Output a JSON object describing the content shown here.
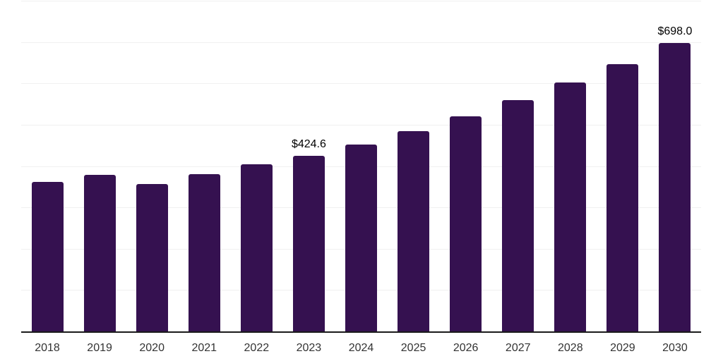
{
  "chart_data": {
    "type": "bar",
    "title": "",
    "xlabel": "",
    "ylabel": "",
    "categories": [
      "2018",
      "2019",
      "2020",
      "2021",
      "2022",
      "2023",
      "2024",
      "2025",
      "2026",
      "2027",
      "2028",
      "2029",
      "2030"
    ],
    "values": [
      361.8,
      378.3,
      356.7,
      380.5,
      403.9,
      424.6,
      452.7,
      484.6,
      521.0,
      559.7,
      601.9,
      647.3,
      698.0
    ],
    "data_labels": [
      "",
      "",
      "",
      "",
      "",
      "$424.6",
      "",
      "",
      "",
      "",
      "",
      "",
      "$698.0"
    ],
    "ylim": [
      0,
      800
    ],
    "grid_interval": 100,
    "grid": true,
    "legend": false,
    "colors": {
      "bar": "#351150",
      "gridline": "#f0f0f0",
      "axis_line": "#1a1a1a",
      "tick_label": "#333333",
      "data_label": "#000000"
    }
  }
}
